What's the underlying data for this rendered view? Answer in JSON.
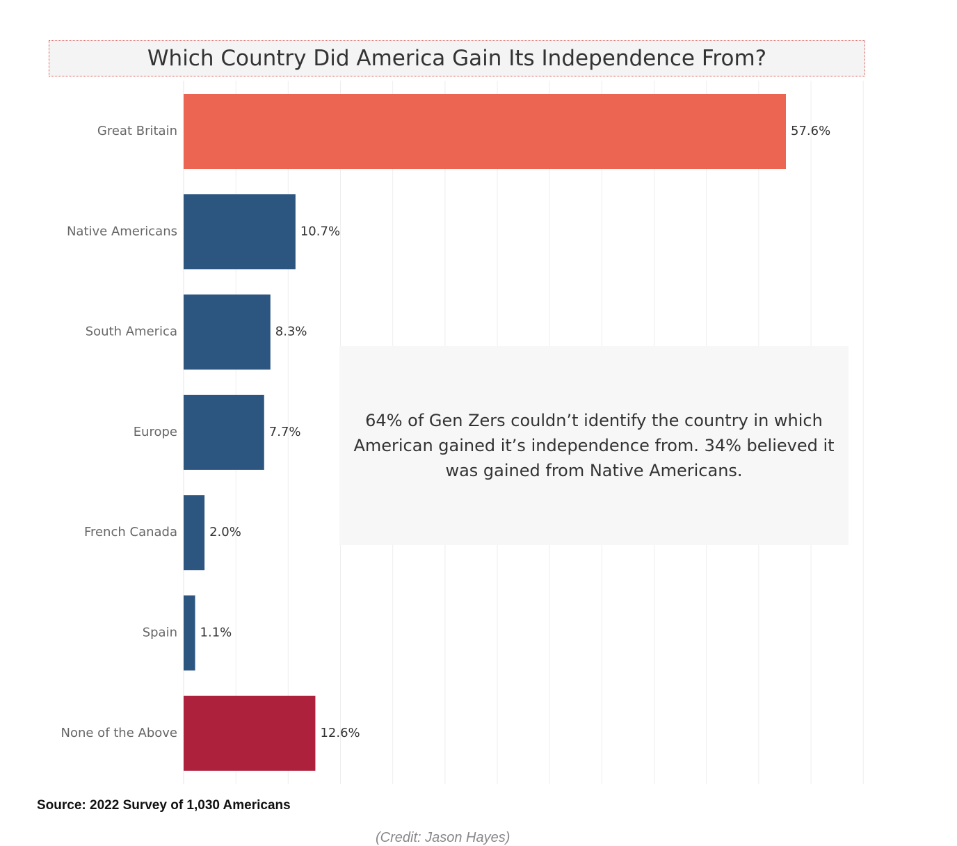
{
  "chart_data": {
    "type": "bar",
    "orientation": "horizontal",
    "title": "Which Country Did America Gain Its Independence From?",
    "categories": [
      "Great Britain",
      "Native Americans",
      "South America",
      "Europe",
      "French Canada",
      "Spain",
      "None of the Above"
    ],
    "values": [
      57.6,
      10.7,
      8.3,
      7.7,
      2.0,
      1.1,
      12.6
    ],
    "value_labels": [
      "57.6%",
      "10.7%",
      "8.3%",
      "7.7%",
      "2.0%",
      "1.1%",
      "12.6%"
    ],
    "unit": "%",
    "colors": [
      "#ec6552",
      "#2c5680",
      "#2c5680",
      "#2c5680",
      "#2c5680",
      "#2c5680",
      "#ad213d"
    ],
    "xlim": [
      0,
      65
    ],
    "grid": true,
    "annotation": "64% of Gen Zers couldn’t identify the country in which American gained it’s independence from. 34% believed it was gained from Native Americans."
  },
  "source": "Source: 2022 Survey of 1,030 Americans",
  "credit": "(Credit: Jason Hayes)"
}
